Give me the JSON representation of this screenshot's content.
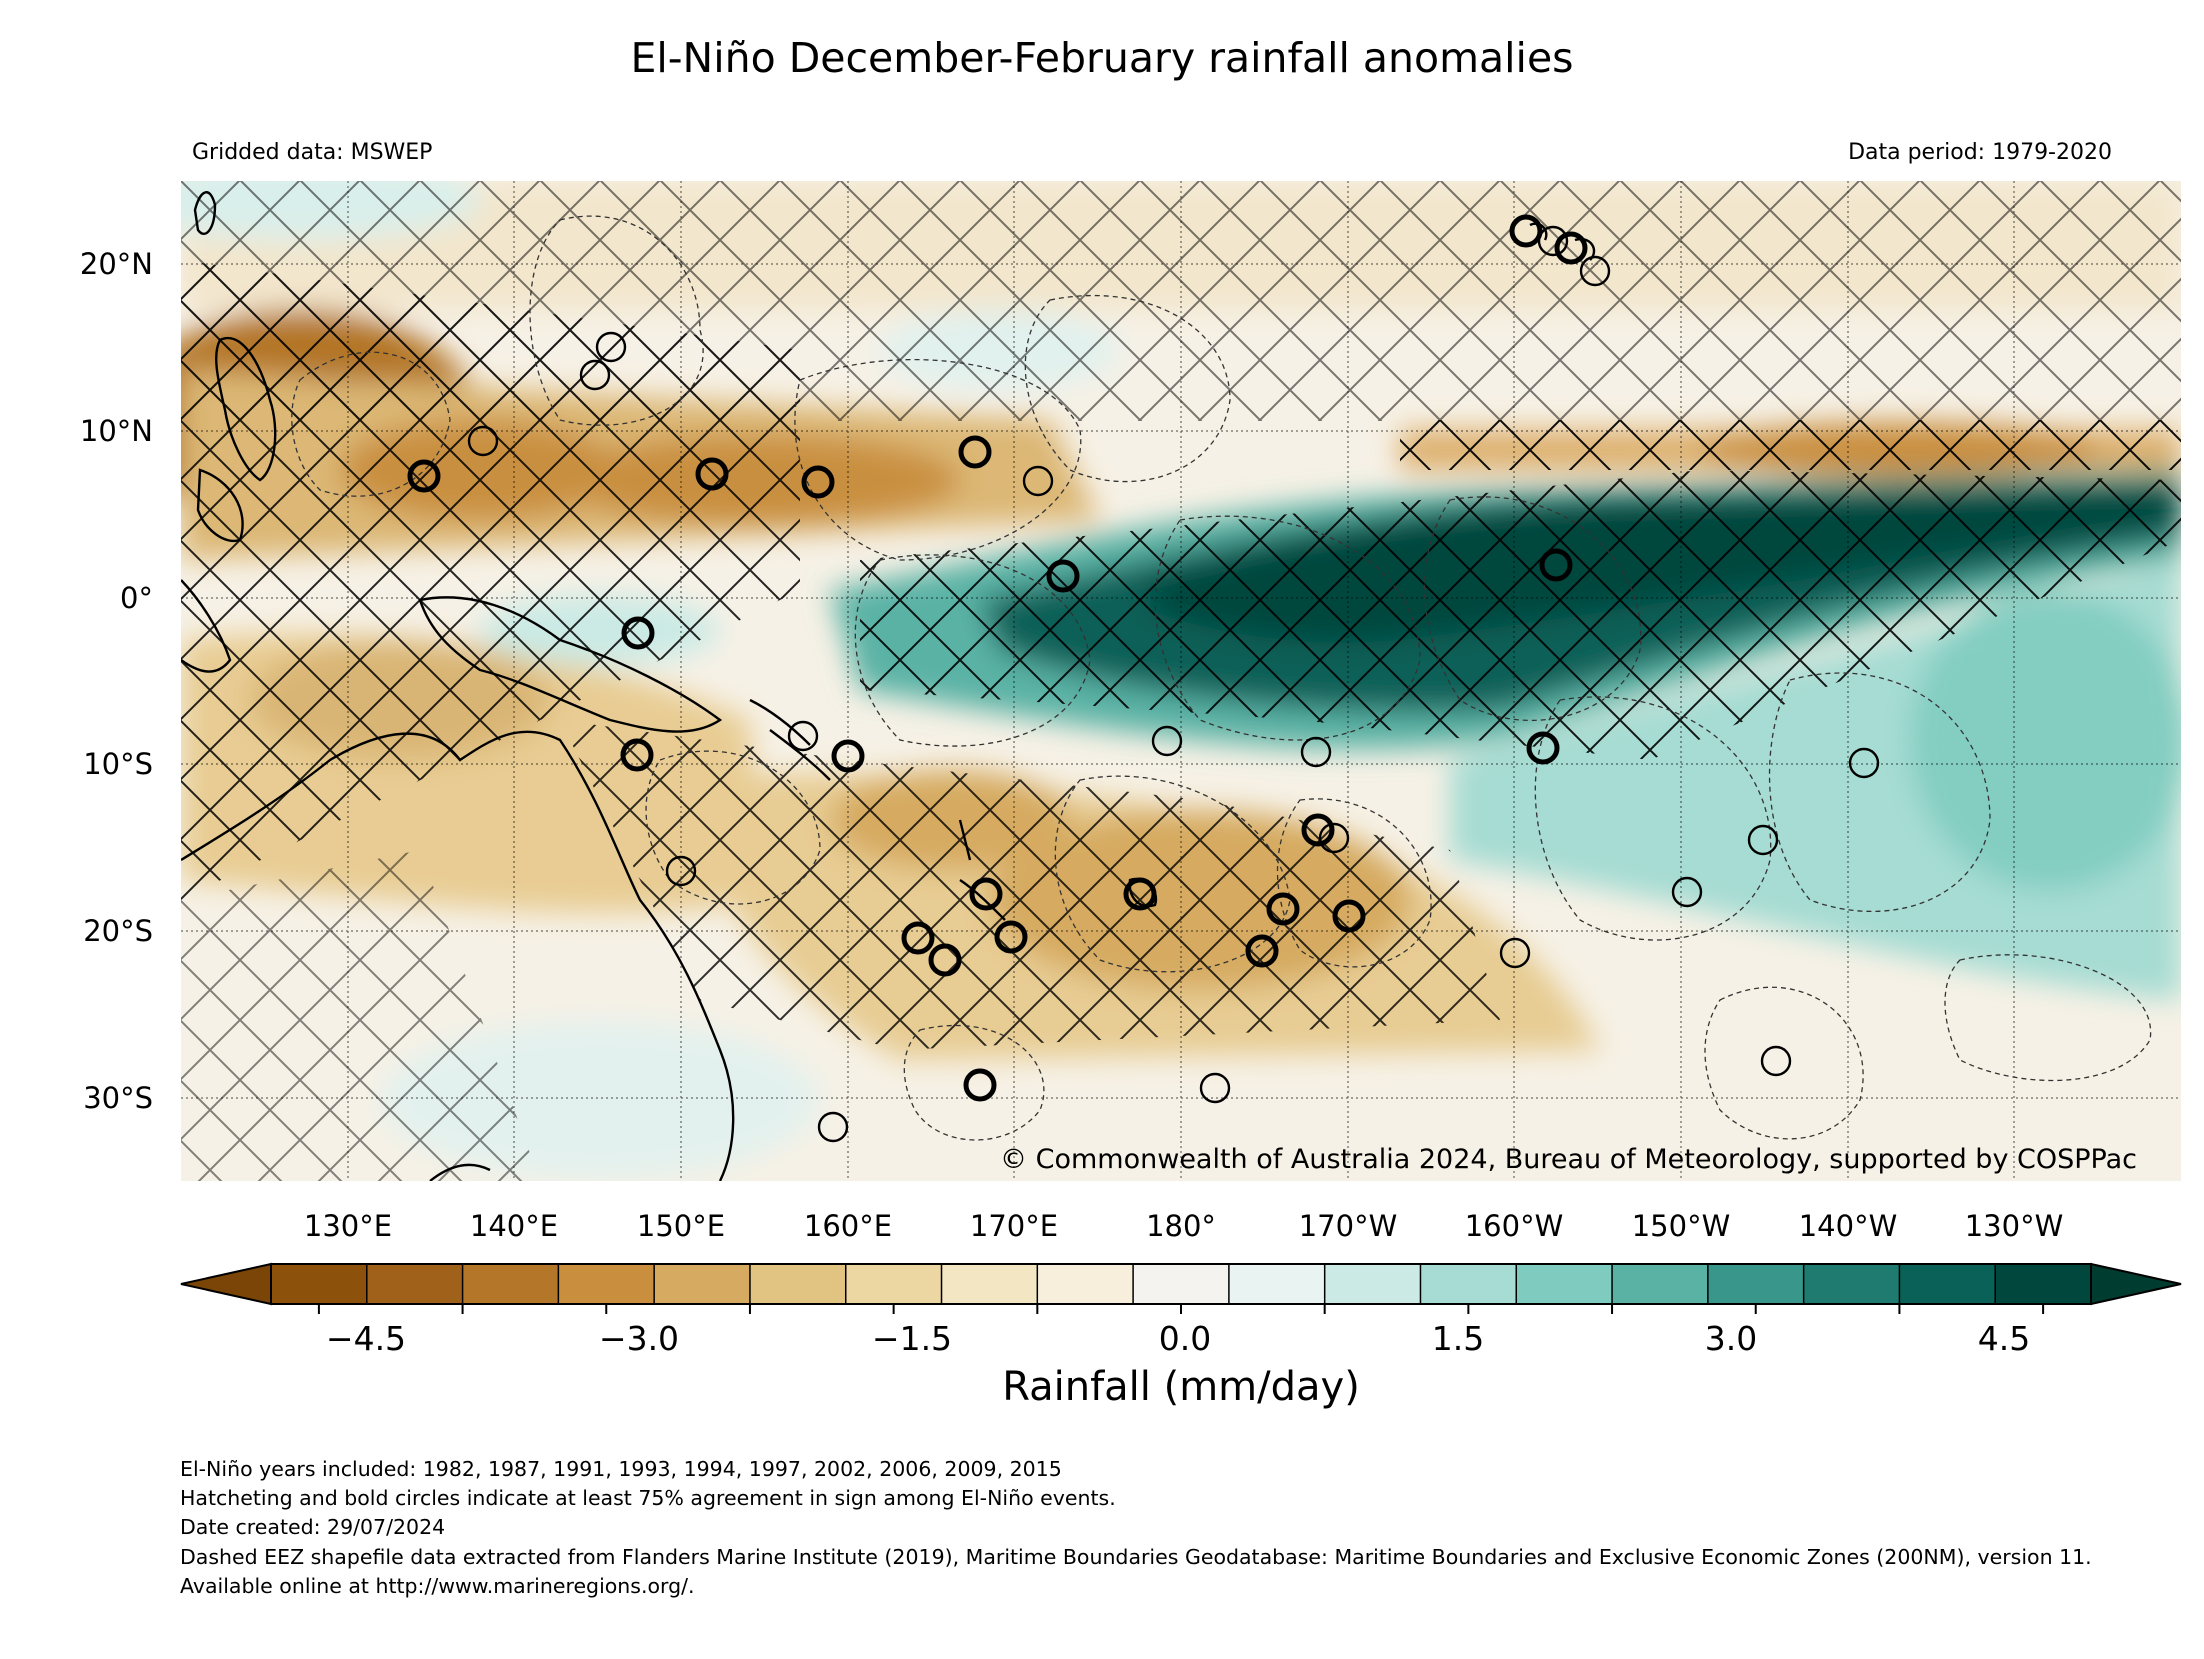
{
  "title": "El-Niño December-February rainfall anomalies",
  "left_note": "Gridded data: MSWEP",
  "right_note": "Data period: 1979-2020",
  "copyright": "© Commonwealth of Australia 2024, Bureau of Meteorology, supported by COSPPac",
  "lat_labels": [
    "20°N",
    "10°N",
    "0°",
    "10°S",
    "20°S",
    "30°S"
  ],
  "lon_labels": [
    "130°E",
    "140°E",
    "150°E",
    "160°E",
    "170°E",
    "180°",
    "170°W",
    "160°W",
    "150°W",
    "140°W",
    "130°W"
  ],
  "colorbar": {
    "label": "Rainfall (mm/day)",
    "ticks": [
      "−4.5",
      "−3.0",
      "−1.5",
      "0.0",
      "1.5",
      "3.0",
      "4.5"
    ],
    "min": -5,
    "max": 5,
    "step": 0.5,
    "colors": [
      "#8c510a",
      "#a0611a",
      "#b47628",
      "#c98f3f",
      "#d6aa60",
      "#e2c482",
      "#ecd7a2",
      "#f3e6c3",
      "#f7efdc",
      "#f5f3ef",
      "#e9f3f1",
      "#cbeae5",
      "#a6dcd3",
      "#80cbbf",
      "#5ab2a5",
      "#38968b",
      "#1f7a70",
      "#0a6158",
      "#01473d"
    ],
    "under_color": "#7a4507",
    "over_color": "#003c30"
  },
  "map": {
    "type": "heatmap",
    "extent_lon_deg_east": [
      121,
      241
    ],
    "extent_lat": [
      -35,
      25
    ],
    "hatching_meaning": "Hatcheting and bold circles indicate at least 75% agreement in sign among El-Niño events."
  },
  "footnotes": [
    "El-Niño years included: 1982, 1987, 1991, 1993, 1994, 1997, 2002, 2006, 2009, 2015",
    "Hatcheting and bold circles indicate at least 75% agreement in sign among El-Niño events.",
    "Date created: 29/07/2024",
    "Dashed EEZ shapefile data extracted from Flanders Marine Institute (2019), Maritime Boundaries Geodatabase: Maritime Boundaries and Exclusive Economic Zones (200NM), version 11. Available online at http://www.marineregions.org/."
  ],
  "colors": {
    "dry": "#c98f3f",
    "wet": "#01473d",
    "neutral": "#f5f3ef"
  }
}
